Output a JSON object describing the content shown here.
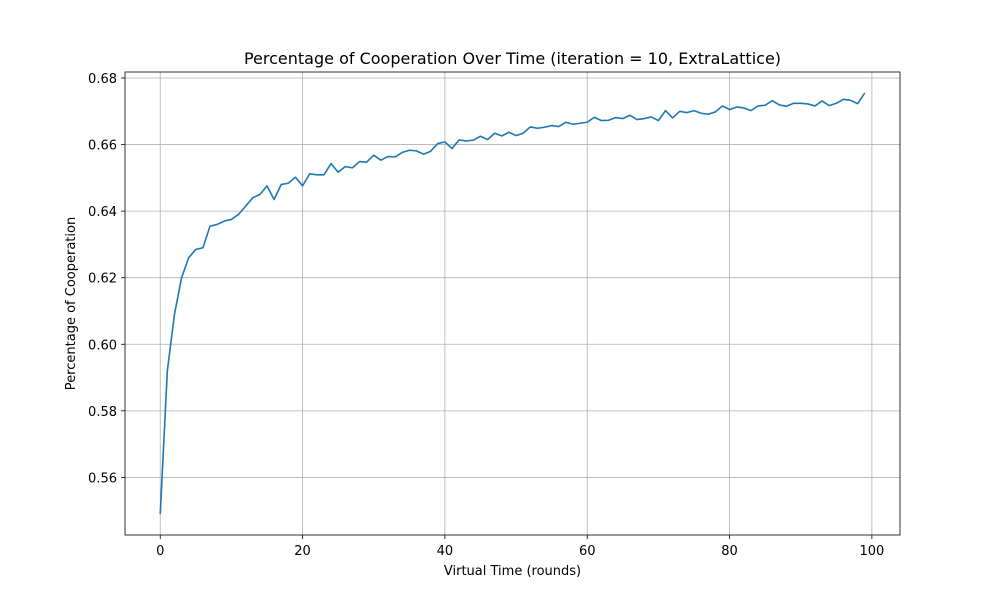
{
  "chart_data": {
    "type": "line",
    "title": "Percentage of Cooperation Over Time (iteration = 10, ExtraLattice)",
    "xlabel": "Virtual Time (rounds)",
    "ylabel": "Percentage of Cooperation",
    "xlim": [
      -4.95,
      103.95
    ],
    "ylim": [
      0.5427,
      0.6818
    ],
    "xticks": [
      0,
      20,
      40,
      60,
      80,
      100
    ],
    "yticks": [
      0.56,
      0.58,
      0.6,
      0.62,
      0.64,
      0.66,
      0.68
    ],
    "xtick_labels": [
      "0",
      "20",
      "40",
      "60",
      "80",
      "100"
    ],
    "ytick_labels": [
      "0.56",
      "0.58",
      "0.60",
      "0.62",
      "0.64",
      "0.66",
      "0.68"
    ],
    "grid": true,
    "legend": "none",
    "line_color": "#1f77b4",
    "series": [
      {
        "x": [
          0,
          1,
          2,
          3,
          4,
          5,
          6,
          7,
          8,
          9,
          10,
          11,
          12,
          13,
          14,
          15,
          16,
          17,
          18,
          19,
          20,
          21,
          22,
          23,
          24,
          25,
          26,
          27,
          28,
          29,
          30,
          31,
          32,
          33,
          34,
          35,
          36,
          37,
          38,
          39,
          40,
          41,
          42,
          43,
          44,
          45,
          46,
          47,
          48,
          49,
          50,
          51,
          52,
          53,
          54,
          55,
          56,
          57,
          58,
          59,
          60,
          61,
          62,
          63,
          64,
          65,
          66,
          67,
          68,
          69,
          70,
          71,
          72,
          73,
          74,
          75,
          76,
          77,
          78,
          79,
          80,
          81,
          82,
          83,
          84,
          85,
          86,
          87,
          88,
          89,
          90,
          91,
          92,
          93,
          94,
          95,
          96,
          97,
          98,
          99
        ],
        "values": [
          0.549,
          0.592,
          0.609,
          0.62,
          0.626,
          0.6285,
          0.629,
          0.6355,
          0.636,
          0.637,
          0.6375,
          0.639,
          0.6415,
          0.644,
          0.645,
          0.6476,
          0.6435,
          0.648,
          0.6484,
          0.6502,
          0.6476,
          0.6512,
          0.6509,
          0.6509,
          0.6543,
          0.6517,
          0.6534,
          0.653,
          0.6549,
          0.6547,
          0.6568,
          0.6553,
          0.6564,
          0.6563,
          0.6576,
          0.6583,
          0.6581,
          0.6571,
          0.658,
          0.6603,
          0.6608,
          0.6588,
          0.6614,
          0.6611,
          0.6613,
          0.6625,
          0.6615,
          0.6634,
          0.6626,
          0.6637,
          0.6627,
          0.6634,
          0.6653,
          0.6649,
          0.6652,
          0.6657,
          0.6654,
          0.6667,
          0.6661,
          0.6664,
          0.6667,
          0.6682,
          0.6672,
          0.6673,
          0.6681,
          0.6678,
          0.6688,
          0.6675,
          0.6678,
          0.6683,
          0.6672,
          0.6702,
          0.668,
          0.67,
          0.6696,
          0.6702,
          0.6694,
          0.6691,
          0.6698,
          0.6716,
          0.6705,
          0.6713,
          0.671,
          0.6702,
          0.6716,
          0.6718,
          0.6732,
          0.6719,
          0.6715,
          0.6724,
          0.6724,
          0.6722,
          0.6716,
          0.6731,
          0.6717,
          0.6724,
          0.6736,
          0.6733,
          0.6723,
          0.6755
        ]
      }
    ]
  }
}
